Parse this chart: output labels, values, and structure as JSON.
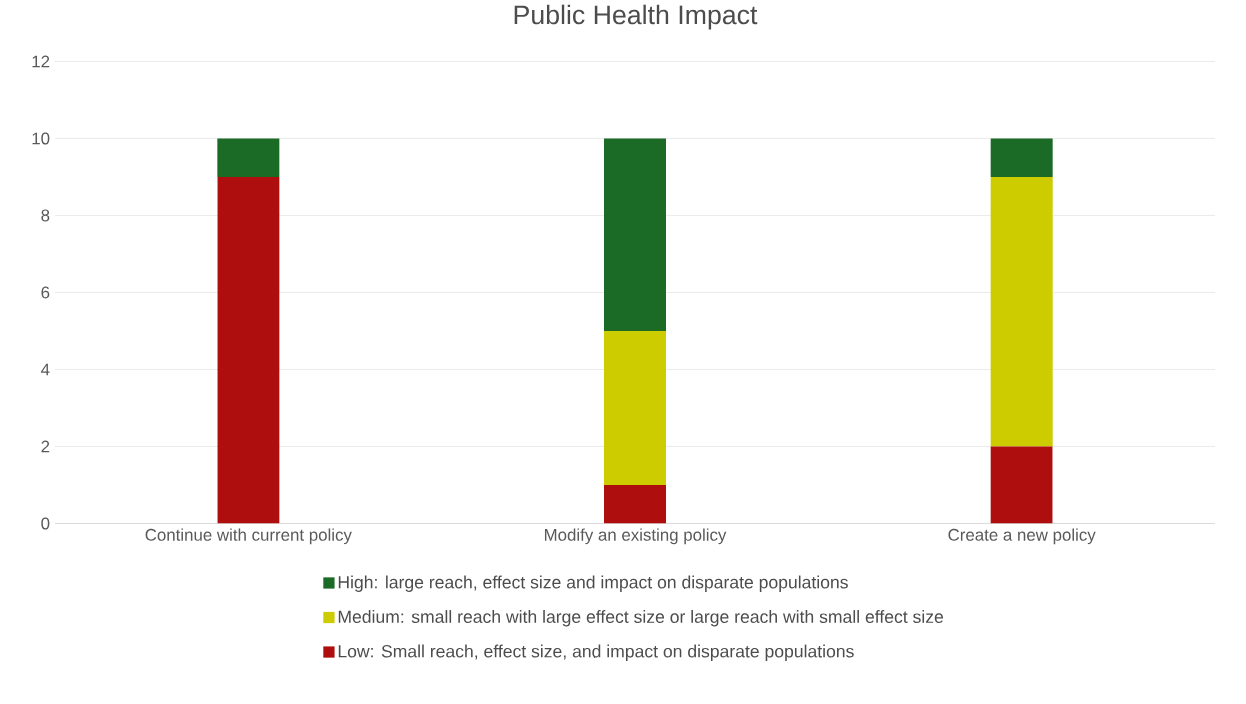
{
  "chart_data": {
    "type": "bar",
    "title": "Public Health Impact",
    "stacked": true,
    "categories": [
      "Continue with current policy",
      "Modify an existing policy",
      "Create a new policy"
    ],
    "series": [
      {
        "name": "Low: Small reach, effect size, and impact on disparate populations",
        "color": "#ae0e0e",
        "values": [
          9,
          1,
          2
        ]
      },
      {
        "name": "Medium: small reach with large effect size or large reach with small effect size",
        "color": "#cccc00",
        "values": [
          0,
          4,
          7
        ]
      },
      {
        "name": "High: large reach, effect size and impact on disparate populations",
        "color": "#1b6b27",
        "values": [
          1,
          5,
          1
        ]
      }
    ],
    "ylim": [
      0,
      12
    ],
    "yticks": [
      0,
      2,
      4,
      6,
      8,
      10,
      12
    ],
    "grid": "y",
    "legend": "bottom"
  }
}
